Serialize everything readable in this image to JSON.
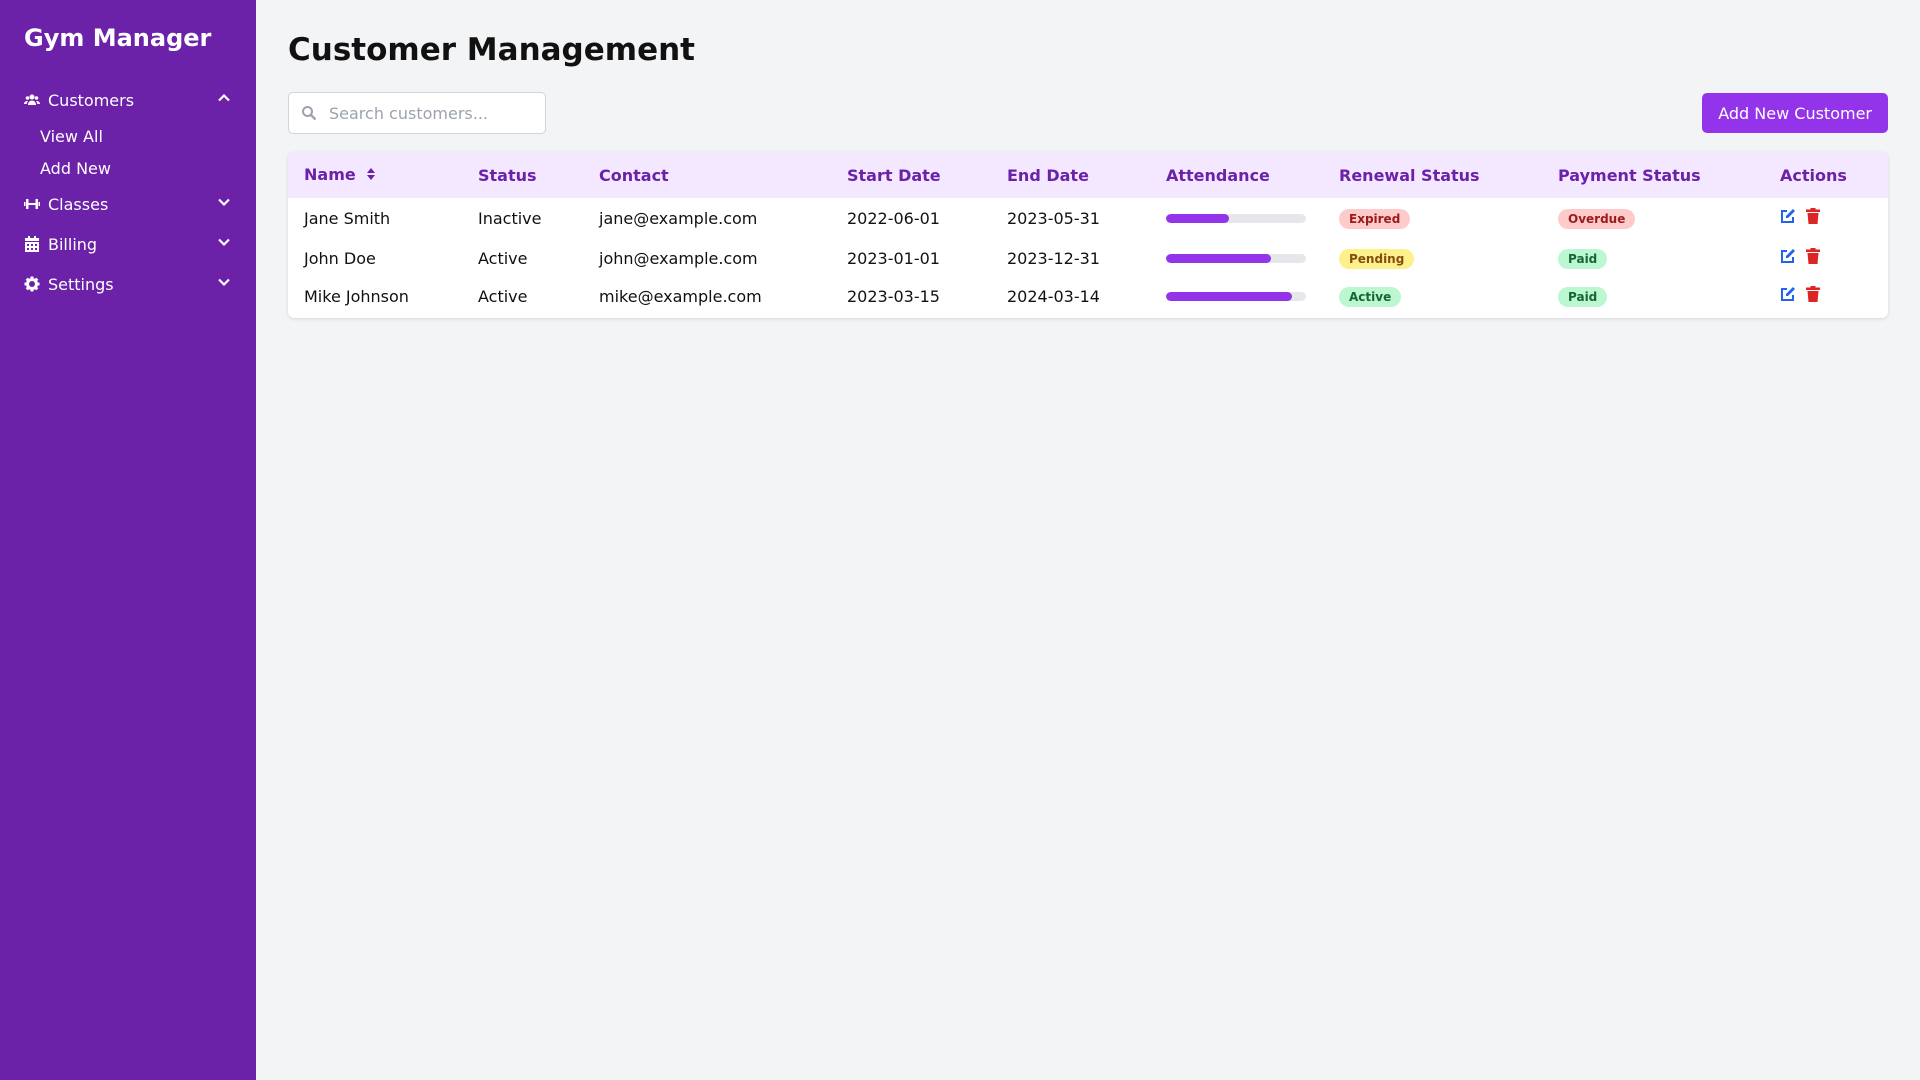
{
  "sidebar": {
    "title": "Gym Manager",
    "items": [
      {
        "label": "Customers",
        "icon": "users-icon",
        "expanded": true,
        "children": [
          "View All",
          "Add New"
        ]
      },
      {
        "label": "Classes",
        "icon": "dumbbell-icon",
        "expanded": false
      },
      {
        "label": "Billing",
        "icon": "calendar-icon",
        "expanded": false
      },
      {
        "label": "Settings",
        "icon": "gear-icon",
        "expanded": false
      }
    ]
  },
  "main": {
    "title": "Customer Management",
    "search_placeholder": "Search customers...",
    "add_button": "Add New Customer",
    "columns": [
      "Name",
      "Status",
      "Contact",
      "Start Date",
      "End Date",
      "Attendance",
      "Renewal Status",
      "Payment Status",
      "Actions"
    ],
    "rows": [
      {
        "name": "Jane Smith",
        "status": "Inactive",
        "contact": "jane@example.com",
        "start": "2022-06-01",
        "end": "2023-05-31",
        "attendance": 45,
        "renewal": "Expired",
        "payment": "Overdue"
      },
      {
        "name": "John Doe",
        "status": "Active",
        "contact": "john@example.com",
        "start": "2023-01-01",
        "end": "2023-12-31",
        "attendance": 75,
        "renewal": "Pending",
        "payment": "Paid"
      },
      {
        "name": "Mike Johnson",
        "status": "Active",
        "contact": "mike@example.com",
        "start": "2023-03-15",
        "end": "2024-03-14",
        "attendance": 90,
        "renewal": "Active",
        "payment": "Paid"
      }
    ]
  },
  "badge_colors": {
    "Expired": [
      "#fecaca",
      "#991b1b"
    ],
    "Overdue": [
      "#fecaca",
      "#991b1b"
    ],
    "Pending": [
      "#fef08a",
      "#854d0e"
    ],
    "Active": [
      "#bbf7d0",
      "#166534"
    ],
    "Paid": [
      "#bbf7d0",
      "#166534"
    ]
  },
  "colors": {
    "sidebar": "#6b21a8",
    "accent": "#9333ea",
    "edit": "#2563eb",
    "delete": "#dc2626"
  }
}
